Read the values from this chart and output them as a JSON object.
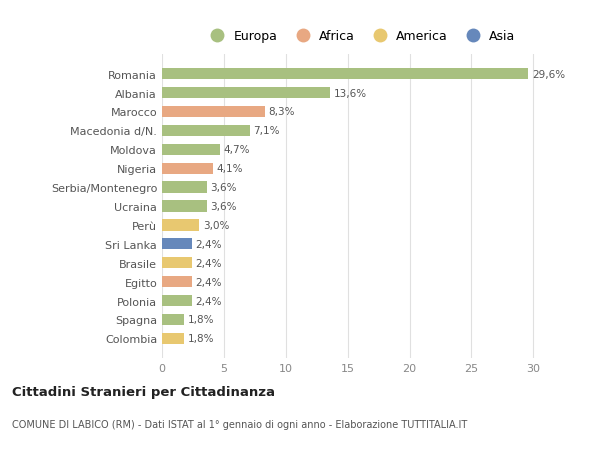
{
  "countries": [
    "Romania",
    "Albania",
    "Marocco",
    "Macedonia d/N.",
    "Moldova",
    "Nigeria",
    "Serbia/Montenegro",
    "Ucraina",
    "Perù",
    "Sri Lanka",
    "Brasile",
    "Egitto",
    "Polonia",
    "Spagna",
    "Colombia"
  ],
  "values": [
    29.6,
    13.6,
    8.3,
    7.1,
    4.7,
    4.1,
    3.6,
    3.6,
    3.0,
    2.4,
    2.4,
    2.4,
    2.4,
    1.8,
    1.8
  ],
  "labels": [
    "29,6%",
    "13,6%",
    "8,3%",
    "7,1%",
    "4,7%",
    "4,1%",
    "3,6%",
    "3,6%",
    "3,0%",
    "2,4%",
    "2,4%",
    "2,4%",
    "2,4%",
    "1,8%",
    "1,8%"
  ],
  "continents": [
    "Europa",
    "Europa",
    "Africa",
    "Europa",
    "Europa",
    "Africa",
    "Europa",
    "Europa",
    "America",
    "Asia",
    "America",
    "Africa",
    "Europa",
    "Europa",
    "America"
  ],
  "colors": {
    "Europa": "#a8c080",
    "Africa": "#e8a882",
    "America": "#e8c870",
    "Asia": "#6688bb"
  },
  "legend_order": [
    "Europa",
    "Africa",
    "America",
    "Asia"
  ],
  "title": "Cittadini Stranieri per Cittadinanza",
  "subtitle": "COMUNE DI LABICO (RM) - Dati ISTAT al 1° gennaio di ogni anno - Elaborazione TUTTITALIA.IT",
  "xlim": [
    0,
    32
  ],
  "xticks": [
    0,
    5,
    10,
    15,
    20,
    25,
    30
  ],
  "bg_color": "#ffffff",
  "grid_color": "#e0e0e0",
  "bar_height": 0.6
}
